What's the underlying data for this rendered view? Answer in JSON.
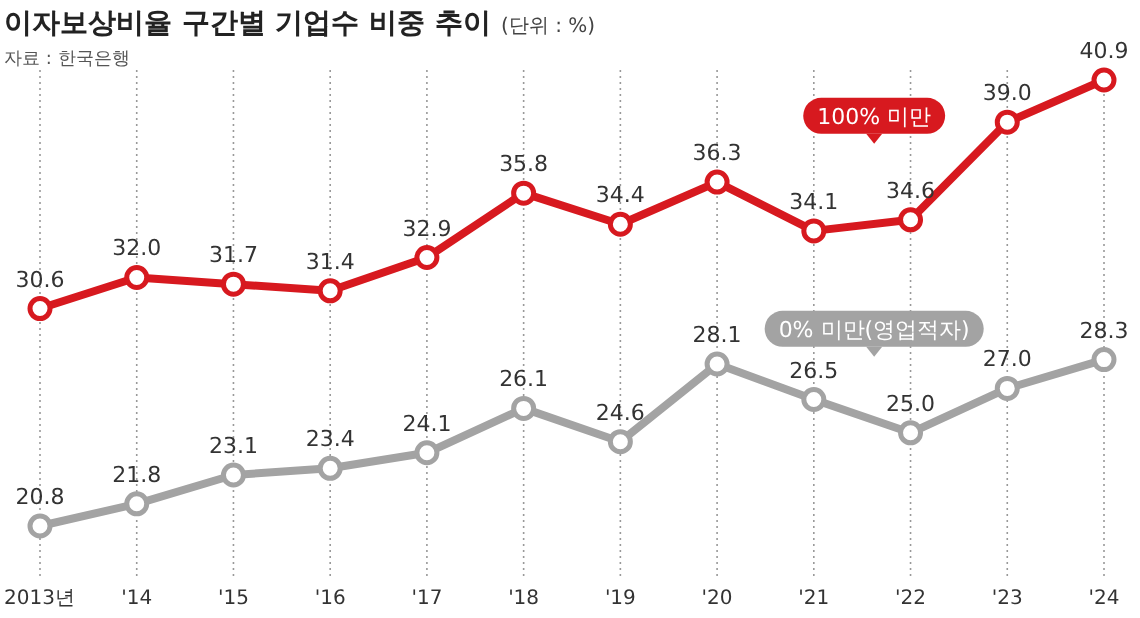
{
  "chart_data": {
    "type": "line",
    "title": "이자보상비율 구간별 기업수 비중 추이",
    "subtitle": "(단위 : %)",
    "annotations": [
      "자료 : 한국은행"
    ],
    "categories": [
      "2013년",
      "'14",
      "'15",
      "'16",
      "'17",
      "'18",
      "'19",
      "'20",
      "'21",
      "'22",
      "'23",
      "'24"
    ],
    "series": [
      {
        "name": "100% 미만",
        "color": "#d7191f",
        "values": [
          30.6,
          32.0,
          31.7,
          31.4,
          32.9,
          35.8,
          34.4,
          36.3,
          34.1,
          34.6,
          39.0,
          40.9
        ],
        "value_labels": [
          "30.6",
          "32.0",
          "31.7",
          "31.4",
          "32.9",
          "35.8",
          "34.4",
          "36.3",
          "34.1",
          "34.6",
          "39.0",
          "40.9"
        ]
      },
      {
        "name": "0% 미만(영업적자)",
        "color": "#a3a3a3",
        "values": [
          20.8,
          21.8,
          23.1,
          23.4,
          24.1,
          26.1,
          24.6,
          28.1,
          26.5,
          25.0,
          27.0,
          28.3
        ],
        "value_labels": [
          "20.8",
          "21.8",
          "23.1",
          "23.4",
          "24.1",
          "26.1",
          "24.6",
          "28.1",
          "26.5",
          "25.0",
          "27.0",
          "28.3"
        ]
      }
    ],
    "grid": "x",
    "marker": "circle",
    "line_style": "solid",
    "legend": false
  }
}
